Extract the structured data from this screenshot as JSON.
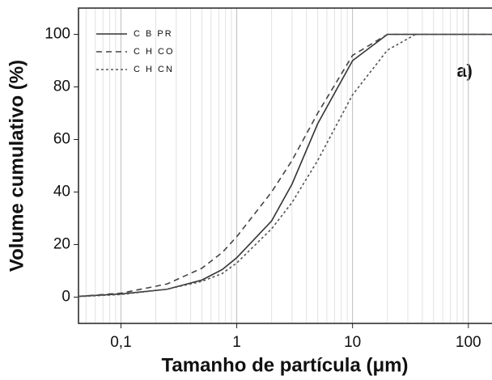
{
  "chart_data": {
    "type": "line",
    "x_label": "Tamanho de partícula (μm)",
    "y_label": "Volume cumulativo (%)",
    "annotation": "a)",
    "log_x": true,
    "xlim": [
      0.043,
      160
    ],
    "ylim": [
      -10,
      110
    ],
    "xticks": [
      {
        "value": 0.1,
        "label": "0,1"
      },
      1,
      10,
      100
    ],
    "xminorticks": [
      0.05,
      0.06,
      0.07,
      0.08,
      0.09,
      0.2,
      0.3,
      0.4,
      0.5,
      0.6,
      0.7,
      0.8,
      0.9,
      2,
      3,
      4,
      5,
      6,
      7,
      8,
      9,
      20,
      30,
      40,
      50,
      60,
      70,
      80,
      90
    ],
    "yticks": [
      0,
      20,
      40,
      60,
      80,
      100
    ],
    "grid": true,
    "legend": "upper left",
    "x": [
      0.043,
      0.1,
      0.25,
      0.5,
      0.75,
      1,
      2,
      3,
      5,
      10,
      20,
      35,
      160
    ],
    "series": [
      {
        "name": "C B  PR",
        "color": "#333333",
        "style": "solid",
        "values": [
          0.3,
          1.2,
          3,
          6.5,
          10.5,
          15,
          29,
          43,
          66,
          90,
          100,
          100,
          100
        ]
      },
      {
        "name": "C H  CO",
        "color": "#444444",
        "style": "dashed",
        "values": [
          0.3,
          1.5,
          5,
          11,
          17,
          23,
          40,
          52,
          70,
          92,
          100,
          100,
          100
        ]
      },
      {
        "name": "C H  CN",
        "color": "#555555",
        "style": "dotted",
        "values": [
          0.2,
          1,
          3,
          6,
          9,
          13,
          26,
          36,
          52,
          77,
          94,
          100,
          100
        ]
      }
    ]
  }
}
